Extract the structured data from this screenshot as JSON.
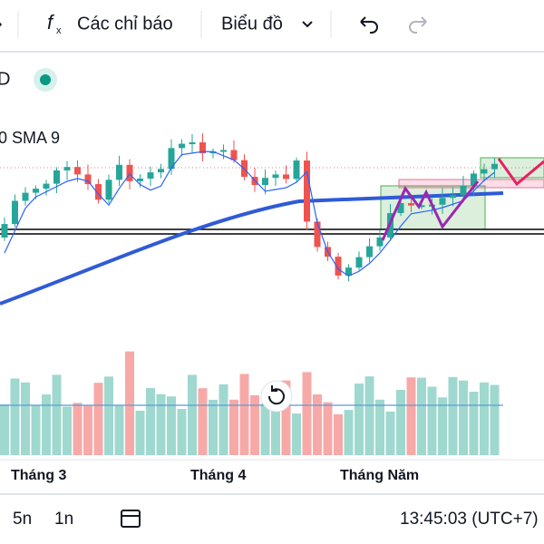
{
  "toolbar": {
    "indicators": "Các chỉ báo",
    "chart_type": "Biểu đồ"
  },
  "legend": {
    "symbol": "D",
    "indicator": "0 SMA 9"
  },
  "x_axis": {
    "labels": [
      "Tháng 3",
      "Tháng 4",
      "Tháng Năm"
    ]
  },
  "footer": {
    "ranges": [
      "5n",
      "1n"
    ],
    "clock": "13:45:03 (UTC+7)"
  }
}
